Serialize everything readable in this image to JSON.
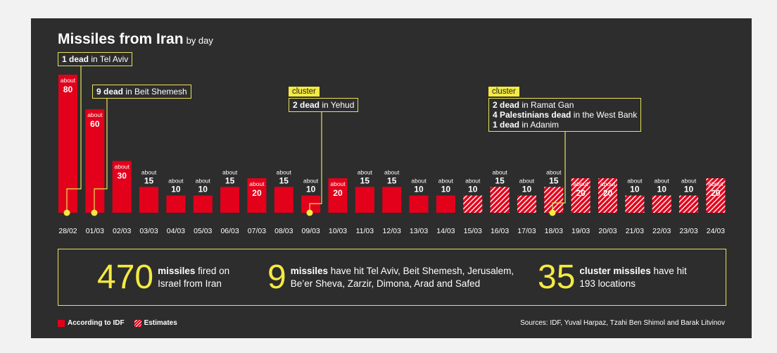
{
  "title": {
    "main": "Missiles from Iran",
    "sub": "by day"
  },
  "chart_data": {
    "type": "bar",
    "title": "Missiles from Iran by day",
    "categories": [
      "28/02",
      "01/03",
      "02/03",
      "03/03",
      "04/03",
      "05/03",
      "06/03",
      "07/03",
      "08/03",
      "09/03",
      "10/03",
      "11/03",
      "12/03",
      "13/03",
      "14/03",
      "15/03",
      "16/03",
      "17/03",
      "18/03",
      "19/03",
      "20/03",
      "21/03",
      "22/03",
      "23/03",
      "24/03"
    ],
    "values": [
      80,
      60,
      30,
      15,
      10,
      10,
      15,
      20,
      15,
      10,
      20,
      15,
      15,
      10,
      10,
      10,
      15,
      10,
      15,
      20,
      20,
      10,
      10,
      10,
      20
    ],
    "estimate": [
      false,
      false,
      false,
      false,
      false,
      false,
      false,
      false,
      false,
      false,
      false,
      false,
      false,
      false,
      false,
      true,
      true,
      true,
      true,
      true,
      true,
      true,
      true,
      true,
      true
    ],
    "value_prefix": "about",
    "colors": {
      "bar": "#e3001b",
      "accent": "#f4ea42"
    },
    "ylim": [
      0,
      80
    ]
  },
  "annotations": {
    "a1": {
      "bold": "1 dead",
      "rest": " in Tel Aviv"
    },
    "a2": {
      "bold": "9 dead",
      "rest": " in Beit Shemesh"
    },
    "a3": {
      "tag": "cluster",
      "bold": "2 dead",
      "rest": " in Yehud"
    },
    "a4": {
      "tag": "cluster",
      "l1b": "2 dead",
      "l1r": " in Ramat Gan",
      "l2b": "4 Palestinians dead",
      "l2r": " in the West Bank",
      "l3b": "1 dead",
      "l3r": " in Adanim"
    }
  },
  "stats": [
    {
      "num": "470",
      "bold": "missiles",
      "rest1": " fired on",
      "line2": "Israel from Iran"
    },
    {
      "num": "9",
      "bold": "missiles",
      "rest1": " have hit Tel Aviv, Beit Shemesh, Jerusalem,",
      "line2": "Be’er Sheva, Zarzir, Dimona, Arad and Safed"
    },
    {
      "num": "35",
      "bold": "cluster missiles",
      "rest1": " have hit",
      "line2": "193 locations"
    }
  ],
  "legend": {
    "solid": "According to IDF",
    "hatch": "Estimates"
  },
  "sources": "Sources: IDF, Yuval Harpaz, Tzahi Ben Shimol and Barak Litvinov"
}
